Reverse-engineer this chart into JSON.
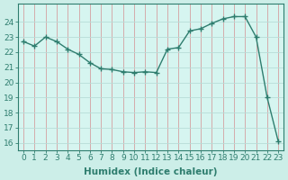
{
  "x": [
    0,
    1,
    2,
    3,
    4,
    5,
    6,
    7,
    8,
    9,
    10,
    11,
    12,
    13,
    14,
    15,
    16,
    17,
    18,
    19,
    20,
    21,
    22,
    23
  ],
  "y": [
    22.7,
    22.4,
    23.0,
    22.7,
    22.2,
    21.85,
    21.3,
    20.9,
    20.85,
    20.7,
    20.65,
    20.7,
    20.65,
    22.2,
    22.3,
    23.4,
    23.55,
    23.9,
    24.2,
    24.35,
    24.35,
    23.0,
    19.0,
    16.1
  ],
  "line_color": "#2e7d6e",
  "marker": "+",
  "marker_size": 4,
  "bg_color": "#cceee8",
  "plot_bg_color": "#d6f5f0",
  "grid_color_v": "#d4a0a0",
  "grid_color_h": "#b8ddd8",
  "xlabel": "Humidex (Indice chaleur)",
  "ylabel": "",
  "xlim": [
    -0.5,
    23.5
  ],
  "ylim": [
    15.5,
    25.2
  ],
  "yticks": [
    16,
    17,
    18,
    19,
    20,
    21,
    22,
    23,
    24
  ],
  "xticks": [
    0,
    1,
    2,
    3,
    4,
    5,
    6,
    7,
    8,
    9,
    10,
    11,
    12,
    13,
    14,
    15,
    16,
    17,
    18,
    19,
    20,
    21,
    22,
    23
  ],
  "xlabel_fontsize": 7.5,
  "tick_fontsize": 6.5,
  "axis_color": "#2e7d6e",
  "line_width": 1.0,
  "marker_color": "#2e7d6e"
}
